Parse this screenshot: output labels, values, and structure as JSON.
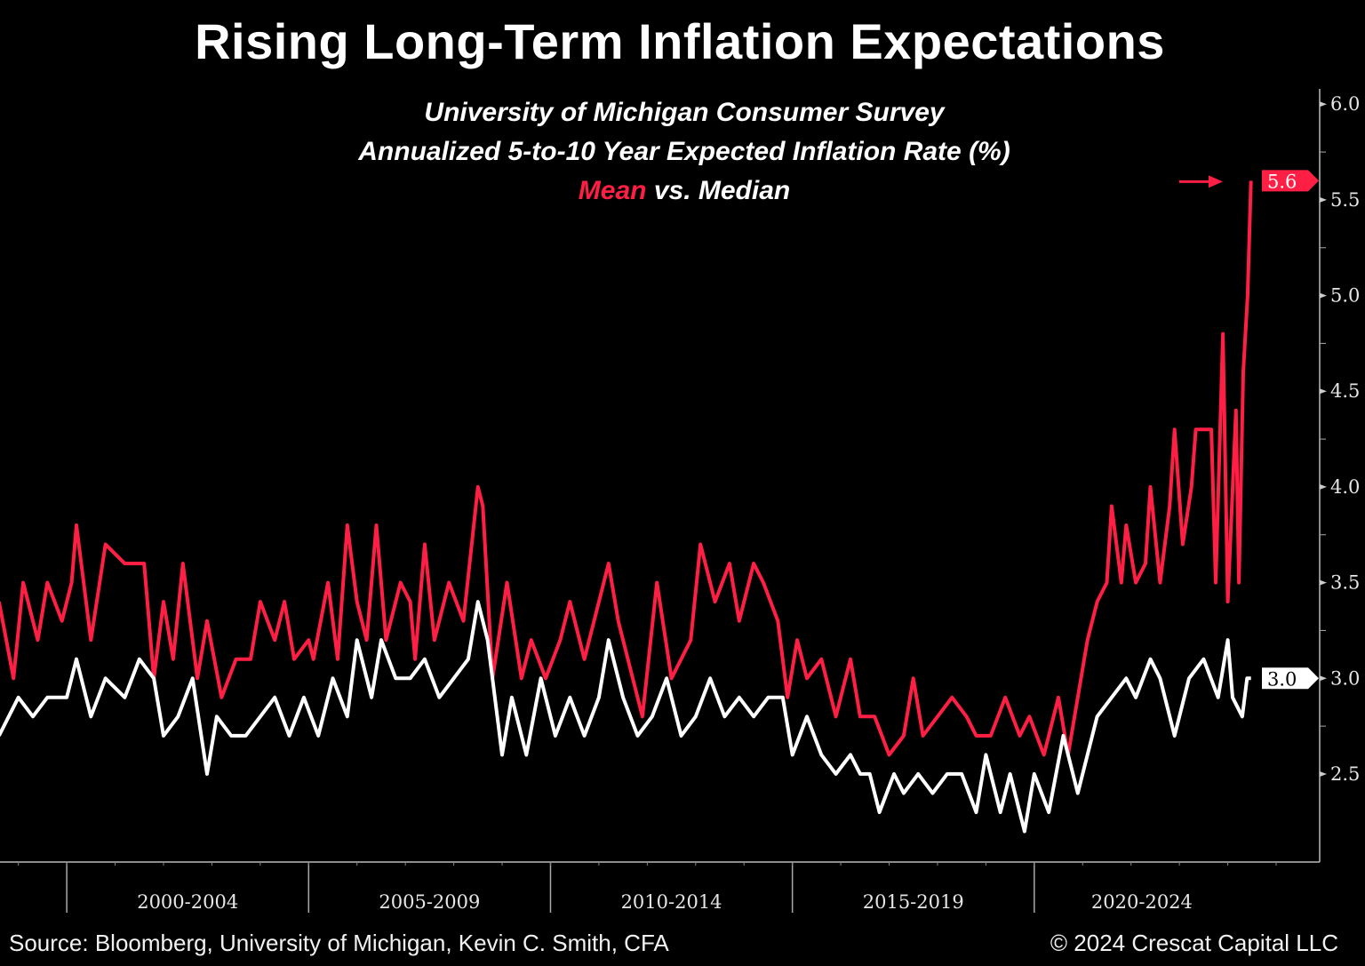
{
  "chart_data": {
    "type": "line",
    "title": "Rising Long-Term Inflation Expectations",
    "subtitle_lines": [
      "University of Michigan Consumer Survey",
      "Annualized 5-to-10 Year Expected Inflation Rate (%)"
    ],
    "legend_line": {
      "mean_word": "Mean",
      "rest": " vs. Median"
    },
    "ylim": [
      2.04,
      6.08
    ],
    "xlim": [
      1998.62,
      2025.9
    ],
    "y_ticks": [
      2.5,
      3.0,
      3.5,
      4.0,
      4.5,
      5.0,
      5.5,
      6.0
    ],
    "y_tick_labels": [
      "2.5",
      "3.0",
      "3.5",
      "4.0",
      "4.5",
      "5.0",
      "5.5",
      "6.0"
    ],
    "x_periods": [
      {
        "label": "2000-2004",
        "start": 2000,
        "end": 2005
      },
      {
        "label": "2005-2009",
        "start": 2005,
        "end": 2010
      },
      {
        "label": "2010-2014",
        "start": 2010,
        "end": 2015
      },
      {
        "label": "2015-2019",
        "start": 2015,
        "end": 2020
      },
      {
        "label": "2020-2024",
        "start": 2020,
        "end": 2025
      }
    ],
    "grid": false,
    "axis_side": "right",
    "colors": {
      "mean": "#ff1f44",
      "median": "#ffffff",
      "background": "#000000"
    },
    "last_value_labels": [
      {
        "series": "Mean",
        "value": "5.6"
      },
      {
        "series": "Median",
        "value": "3.0"
      }
    ],
    "annotations": [
      {
        "type": "arrow",
        "color": "#ff1f44",
        "points_to": "Mean latest value 5.6"
      }
    ],
    "series": [
      {
        "name": "Mean",
        "color": "#ff1f44",
        "points": [
          [
            1998.6,
            3.4
          ],
          [
            1998.9,
            3.0
          ],
          [
            1999.1,
            3.5
          ],
          [
            1999.4,
            3.2
          ],
          [
            1999.6,
            3.5
          ],
          [
            1999.9,
            3.3
          ],
          [
            2000.1,
            3.5
          ],
          [
            2000.2,
            3.8
          ],
          [
            2000.5,
            3.2
          ],
          [
            2000.8,
            3.7
          ],
          [
            2001.2,
            3.6
          ],
          [
            2001.6,
            3.6
          ],
          [
            2001.8,
            3.0
          ],
          [
            2002.0,
            3.4
          ],
          [
            2002.2,
            3.1
          ],
          [
            2002.4,
            3.6
          ],
          [
            2002.7,
            3.0
          ],
          [
            2002.9,
            3.3
          ],
          [
            2003.2,
            2.9
          ],
          [
            2003.5,
            3.1
          ],
          [
            2003.8,
            3.1
          ],
          [
            2004.0,
            3.4
          ],
          [
            2004.3,
            3.2
          ],
          [
            2004.5,
            3.4
          ],
          [
            2004.7,
            3.1
          ],
          [
            2005.0,
            3.2
          ],
          [
            2005.1,
            3.1
          ],
          [
            2005.4,
            3.5
          ],
          [
            2005.6,
            3.1
          ],
          [
            2005.8,
            3.8
          ],
          [
            2006.0,
            3.4
          ],
          [
            2006.2,
            3.2
          ],
          [
            2006.4,
            3.8
          ],
          [
            2006.6,
            3.2
          ],
          [
            2006.9,
            3.5
          ],
          [
            2007.1,
            3.4
          ],
          [
            2007.2,
            3.1
          ],
          [
            2007.4,
            3.7
          ],
          [
            2007.6,
            3.2
          ],
          [
            2007.9,
            3.5
          ],
          [
            2008.2,
            3.3
          ],
          [
            2008.5,
            4.0
          ],
          [
            2008.6,
            3.9
          ],
          [
            2008.8,
            3.0
          ],
          [
            2009.1,
            3.5
          ],
          [
            2009.4,
            3.0
          ],
          [
            2009.6,
            3.2
          ],
          [
            2009.9,
            3.0
          ],
          [
            2010.2,
            3.2
          ],
          [
            2010.4,
            3.4
          ],
          [
            2010.7,
            3.1
          ],
          [
            2010.9,
            3.3
          ],
          [
            2011.2,
            3.6
          ],
          [
            2011.4,
            3.3
          ],
          [
            2011.7,
            3.0
          ],
          [
            2011.9,
            2.8
          ],
          [
            2012.2,
            3.5
          ],
          [
            2012.5,
            3.0
          ],
          [
            2012.7,
            3.1
          ],
          [
            2012.9,
            3.2
          ],
          [
            2013.1,
            3.7
          ],
          [
            2013.4,
            3.4
          ],
          [
            2013.7,
            3.6
          ],
          [
            2013.9,
            3.3
          ],
          [
            2014.2,
            3.6
          ],
          [
            2014.4,
            3.5
          ],
          [
            2014.7,
            3.3
          ],
          [
            2014.9,
            2.9
          ],
          [
            2015.1,
            3.2
          ],
          [
            2015.3,
            3.0
          ],
          [
            2015.6,
            3.1
          ],
          [
            2015.9,
            2.8
          ],
          [
            2016.2,
            3.1
          ],
          [
            2016.4,
            2.8
          ],
          [
            2016.7,
            2.8
          ],
          [
            2017.0,
            2.6
          ],
          [
            2017.3,
            2.7
          ],
          [
            2017.5,
            3.0
          ],
          [
            2017.7,
            2.7
          ],
          [
            2018.0,
            2.8
          ],
          [
            2018.3,
            2.9
          ],
          [
            2018.6,
            2.8
          ],
          [
            2018.8,
            2.7
          ],
          [
            2019.1,
            2.7
          ],
          [
            2019.4,
            2.9
          ],
          [
            2019.7,
            2.7
          ],
          [
            2019.9,
            2.8
          ],
          [
            2020.2,
            2.6
          ],
          [
            2020.5,
            2.9
          ],
          [
            2020.7,
            2.6
          ],
          [
            2020.9,
            2.9
          ],
          [
            2021.1,
            3.2
          ],
          [
            2021.3,
            3.4
          ],
          [
            2021.5,
            3.5
          ],
          [
            2021.6,
            3.9
          ],
          [
            2021.8,
            3.5
          ],
          [
            2021.9,
            3.8
          ],
          [
            2022.1,
            3.5
          ],
          [
            2022.3,
            3.6
          ],
          [
            2022.4,
            4.0
          ],
          [
            2022.6,
            3.5
          ],
          [
            2022.8,
            3.9
          ],
          [
            2022.9,
            4.3
          ],
          [
            2023.07,
            3.7
          ],
          [
            2023.25,
            4.0
          ],
          [
            2023.34,
            4.3
          ],
          [
            2023.66,
            4.3
          ],
          [
            2023.75,
            3.5
          ],
          [
            2023.9,
            4.8
          ],
          [
            2024.0,
            3.4
          ],
          [
            2024.17,
            4.4
          ],
          [
            2024.23,
            3.5
          ],
          [
            2024.32,
            4.6
          ],
          [
            2024.41,
            5.0
          ],
          [
            2024.48,
            5.6
          ]
        ]
      },
      {
        "name": "Median",
        "color": "#ffffff",
        "points": [
          [
            1998.6,
            2.7
          ],
          [
            1999.0,
            2.9
          ],
          [
            1999.3,
            2.8
          ],
          [
            1999.6,
            2.9
          ],
          [
            2000.0,
            2.9
          ],
          [
            2000.2,
            3.1
          ],
          [
            2000.5,
            2.8
          ],
          [
            2000.8,
            3.0
          ],
          [
            2001.2,
            2.9
          ],
          [
            2001.5,
            3.1
          ],
          [
            2001.8,
            3.0
          ],
          [
            2002.0,
            2.7
          ],
          [
            2002.3,
            2.8
          ],
          [
            2002.6,
            3.0
          ],
          [
            2002.9,
            2.5
          ],
          [
            2003.1,
            2.8
          ],
          [
            2003.4,
            2.7
          ],
          [
            2003.7,
            2.7
          ],
          [
            2004.0,
            2.8
          ],
          [
            2004.3,
            2.9
          ],
          [
            2004.6,
            2.7
          ],
          [
            2004.9,
            2.9
          ],
          [
            2005.2,
            2.7
          ],
          [
            2005.5,
            3.0
          ],
          [
            2005.8,
            2.8
          ],
          [
            2006.0,
            3.2
          ],
          [
            2006.3,
            2.9
          ],
          [
            2006.5,
            3.2
          ],
          [
            2006.8,
            3.0
          ],
          [
            2007.1,
            3.0
          ],
          [
            2007.4,
            3.1
          ],
          [
            2007.7,
            2.9
          ],
          [
            2008.0,
            3.0
          ],
          [
            2008.3,
            3.1
          ],
          [
            2008.5,
            3.4
          ],
          [
            2008.7,
            3.2
          ],
          [
            2009.0,
            2.6
          ],
          [
            2009.2,
            2.9
          ],
          [
            2009.5,
            2.6
          ],
          [
            2009.8,
            3.0
          ],
          [
            2010.1,
            2.7
          ],
          [
            2010.4,
            2.9
          ],
          [
            2010.7,
            2.7
          ],
          [
            2011.0,
            2.9
          ],
          [
            2011.2,
            3.2
          ],
          [
            2011.5,
            2.9
          ],
          [
            2011.8,
            2.7
          ],
          [
            2012.1,
            2.8
          ],
          [
            2012.4,
            3.0
          ],
          [
            2012.7,
            2.7
          ],
          [
            2013.0,
            2.8
          ],
          [
            2013.3,
            3.0
          ],
          [
            2013.6,
            2.8
          ],
          [
            2013.9,
            2.9
          ],
          [
            2014.2,
            2.8
          ],
          [
            2014.5,
            2.9
          ],
          [
            2014.8,
            2.9
          ],
          [
            2015.0,
            2.6
          ],
          [
            2015.3,
            2.8
          ],
          [
            2015.6,
            2.6
          ],
          [
            2015.9,
            2.5
          ],
          [
            2016.2,
            2.6
          ],
          [
            2016.4,
            2.5
          ],
          [
            2016.6,
            2.5
          ],
          [
            2016.8,
            2.3
          ],
          [
            2017.1,
            2.5
          ],
          [
            2017.3,
            2.4
          ],
          [
            2017.6,
            2.5
          ],
          [
            2017.9,
            2.4
          ],
          [
            2018.2,
            2.5
          ],
          [
            2018.5,
            2.5
          ],
          [
            2018.8,
            2.3
          ],
          [
            2019.0,
            2.6
          ],
          [
            2019.3,
            2.3
          ],
          [
            2019.5,
            2.5
          ],
          [
            2019.8,
            2.2
          ],
          [
            2020.0,
            2.5
          ],
          [
            2020.3,
            2.3
          ],
          [
            2020.6,
            2.7
          ],
          [
            2020.9,
            2.4
          ],
          [
            2021.1,
            2.6
          ],
          [
            2021.3,
            2.8
          ],
          [
            2021.6,
            2.9
          ],
          [
            2021.9,
            3.0
          ],
          [
            2022.1,
            2.9
          ],
          [
            2022.4,
            3.1
          ],
          [
            2022.6,
            3.0
          ],
          [
            2022.9,
            2.7
          ],
          [
            2023.2,
            3.0
          ],
          [
            2023.5,
            3.1
          ],
          [
            2023.8,
            2.9
          ],
          [
            2024.0,
            3.2
          ],
          [
            2024.1,
            2.9
          ],
          [
            2024.3,
            2.8
          ],
          [
            2024.4,
            3.0
          ],
          [
            2024.48,
            3.0
          ]
        ]
      }
    ]
  },
  "footer": {
    "source": "Source: Bloomberg, University of Michigan, Kevin C. Smith, CFA",
    "copyright": "© 2024 Crescat Capital LLC"
  }
}
